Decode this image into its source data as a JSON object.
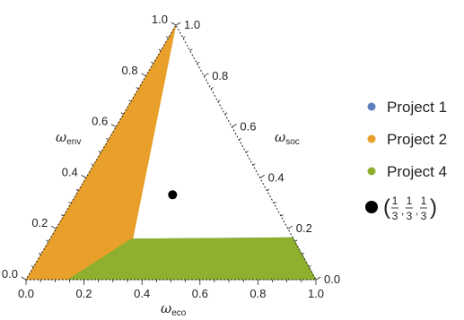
{
  "chart_data": {
    "type": "ternary-region",
    "axes": {
      "bottom": {
        "label": "ω",
        "subscript": "eco",
        "ticks": [
          "0.0",
          "0.2",
          "0.4",
          "0.6",
          "0.8",
          "1.0"
        ]
      },
      "left": {
        "label": "ω",
        "subscript": "env",
        "ticks": [
          "0.0",
          "0.2",
          "0.4",
          "0.6",
          "0.8",
          "1.0"
        ]
      },
      "right": {
        "label": "ω",
        "subscript": "soc",
        "ticks": [
          "0.0",
          "0.2",
          "0.4",
          "0.6",
          "0.8",
          "1.0"
        ]
      }
    },
    "series": [
      {
        "name": "Project 1",
        "color": "#5b7fbd",
        "region_ternary": [
          [
            0.28,
            0.16,
            0.56
          ],
          [
            0.34,
            0.0,
            0.66
          ],
          [
            1.0,
            0.0,
            0.0
          ],
          [
            0.835,
            0.165,
            0.0
          ]
        ]
      },
      {
        "name": "Project 2",
        "color": "#e8a02a",
        "region_ternary": [
          [
            0.0,
            1.0,
            0.0
          ],
          [
            0.34,
            0.0,
            0.66
          ],
          [
            0.28,
            0.16,
            0.56
          ],
          [
            0.145,
            0.0,
            0.855
          ],
          [
            0.0,
            0.0,
            1.0
          ]
        ]
      },
      {
        "name": "Project 4",
        "color": "#8fb02e",
        "region_ternary": [
          [
            0.145,
            0.0,
            0.855
          ],
          [
            0.28,
            0.16,
            0.56
          ],
          [
            0.835,
            0.165,
            0.0
          ],
          [
            1.0,
            0.0,
            0.0
          ]
        ]
      }
    ],
    "marker": {
      "point_ternary": [
        0.3333,
        0.3333,
        0.3333
      ],
      "label": {
        "num": "1",
        "den": "3",
        "open": "(",
        "close": ")",
        "sep": ","
      }
    },
    "legend": {
      "placement": "right"
    }
  }
}
